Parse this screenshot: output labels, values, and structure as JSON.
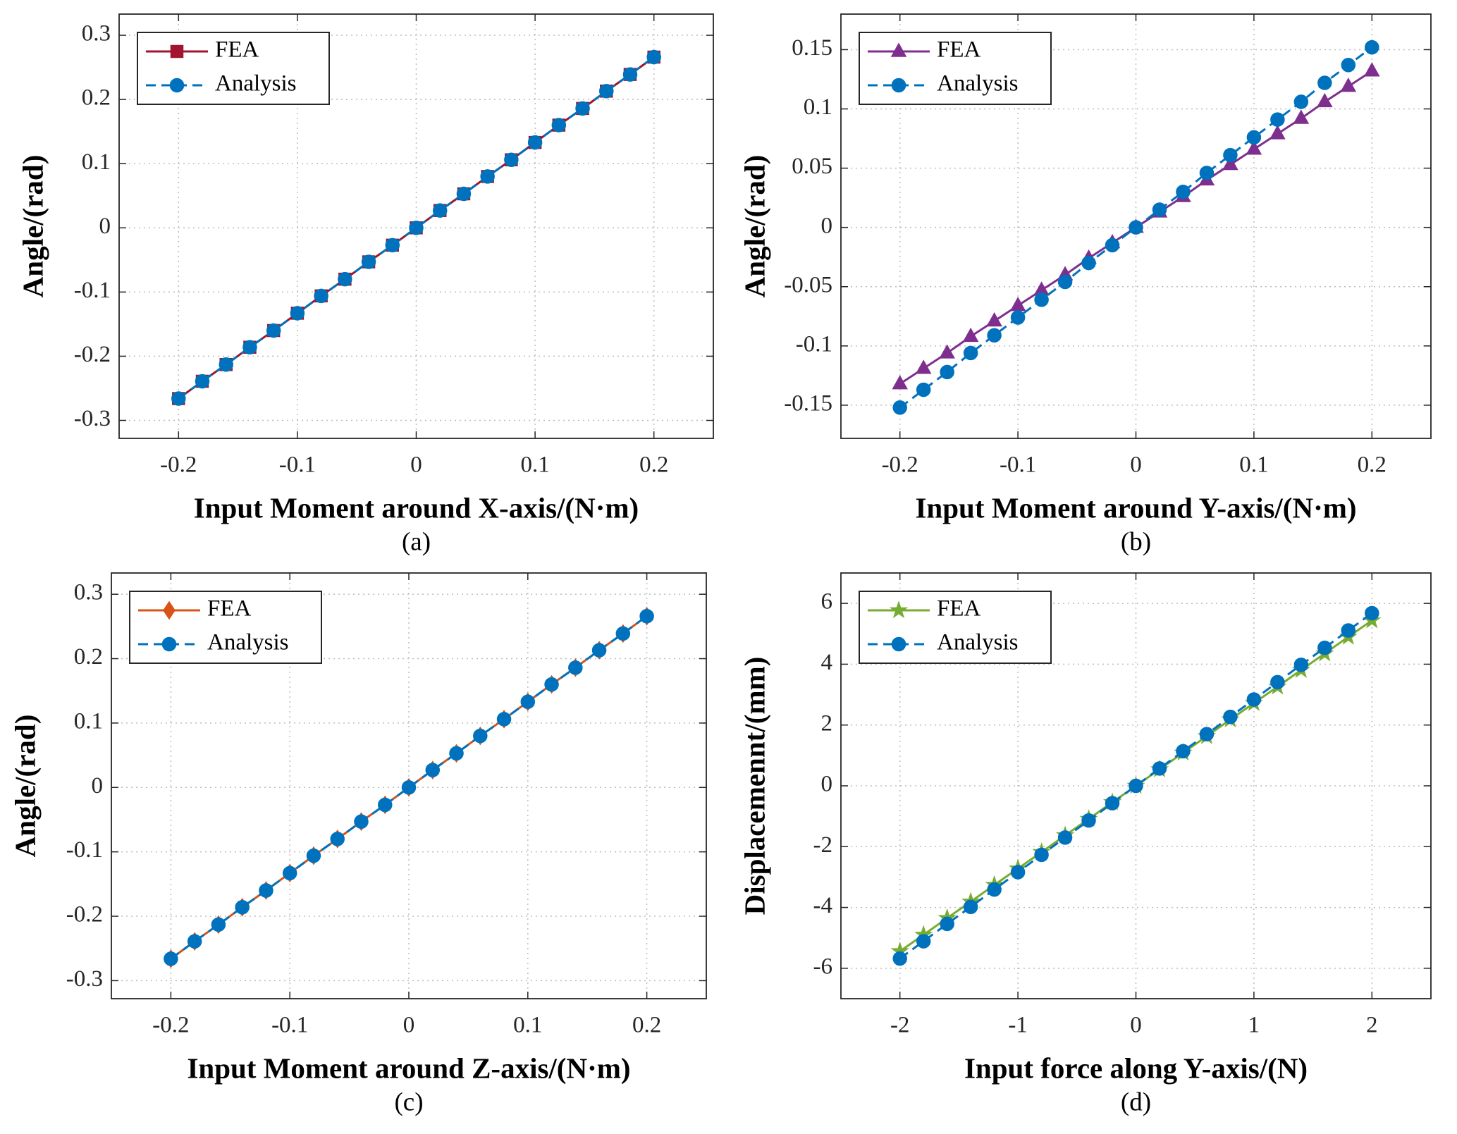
{
  "chart_data": [
    {
      "type": "line",
      "caption": "(a)",
      "x_label": "Input Moment around X-axis/(N·m)",
      "y_label": "Angle/(rad)",
      "x": [
        -0.2,
        -0.18,
        -0.16,
        -0.14,
        -0.12,
        -0.1,
        -0.08,
        -0.06,
        -0.04,
        -0.02,
        0,
        0.02,
        0.04,
        0.06,
        0.08,
        0.1,
        0.12,
        0.14,
        0.16,
        0.18,
        0.2
      ],
      "series": [
        {
          "name": "FEA",
          "color": "#a2142f",
          "marker": "square",
          "dash": false,
          "values": [
            -0.266,
            -0.239,
            -0.213,
            -0.186,
            -0.16,
            -0.133,
            -0.106,
            -0.08,
            -0.053,
            -0.027,
            0,
            0.027,
            0.053,
            0.08,
            0.106,
            0.133,
            0.16,
            0.186,
            0.213,
            0.239,
            0.266
          ]
        },
        {
          "name": "Analysis",
          "color": "#0072bd",
          "marker": "circle",
          "dash": true,
          "values": [
            -0.266,
            -0.239,
            -0.213,
            -0.186,
            -0.16,
            -0.133,
            -0.106,
            -0.08,
            -0.053,
            -0.027,
            0,
            0.027,
            0.053,
            0.08,
            0.106,
            0.133,
            0.16,
            0.186,
            0.213,
            0.239,
            0.266
          ]
        }
      ],
      "xlim": [
        -0.25,
        0.25
      ],
      "xticks": [
        -0.2,
        -0.1,
        0,
        0.1,
        0.2
      ],
      "ylim": [
        -0.328,
        0.333
      ],
      "yticks": [
        -0.3,
        -0.2,
        -0.1,
        0,
        0.1,
        0.2,
        0.3
      ],
      "grid": true,
      "legend": "upper left"
    },
    {
      "type": "line",
      "caption": "(b)",
      "x_label": "Input Moment around Y-axis/(N·m)",
      "y_label": "Angle/(rad)",
      "x": [
        -0.2,
        -0.18,
        -0.16,
        -0.14,
        -0.12,
        -0.1,
        -0.08,
        -0.06,
        -0.04,
        -0.02,
        0,
        0.02,
        0.04,
        0.06,
        0.08,
        0.1,
        0.12,
        0.14,
        0.16,
        0.18,
        0.2
      ],
      "series": [
        {
          "name": "FEA",
          "color": "#7e2f8e",
          "marker": "triangle",
          "dash": false,
          "values": [
            -0.132,
            -0.119,
            -0.106,
            -0.092,
            -0.079,
            -0.066,
            -0.053,
            -0.04,
            -0.026,
            -0.013,
            0,
            0.013,
            0.026,
            0.04,
            0.053,
            0.066,
            0.079,
            0.092,
            0.106,
            0.119,
            0.132
          ]
        },
        {
          "name": "Analysis",
          "color": "#0072bd",
          "marker": "circle",
          "dash": true,
          "values": [
            -0.152,
            -0.137,
            -0.122,
            -0.106,
            -0.091,
            -0.076,
            -0.061,
            -0.046,
            -0.03,
            -0.015,
            0,
            0.015,
            0.03,
            0.046,
            0.061,
            0.076,
            0.091,
            0.106,
            0.122,
            0.137,
            0.152
          ]
        }
      ],
      "xlim": [
        -0.25,
        0.25
      ],
      "xticks": [
        -0.2,
        -0.1,
        0,
        0.1,
        0.2
      ],
      "ylim": [
        -0.178,
        0.18
      ],
      "yticks": [
        -0.15,
        -0.1,
        -0.05,
        0,
        0.05,
        0.1,
        0.15
      ],
      "grid": true,
      "legend": "upper left"
    },
    {
      "type": "line",
      "caption": "(c)",
      "x_label": "Input Moment around Z-axis/(N·m)",
      "y_label": "Angle/(rad)",
      "x": [
        -0.2,
        -0.18,
        -0.16,
        -0.14,
        -0.12,
        -0.1,
        -0.08,
        -0.06,
        -0.04,
        -0.02,
        0,
        0.02,
        0.04,
        0.06,
        0.08,
        0.1,
        0.12,
        0.14,
        0.16,
        0.18,
        0.2
      ],
      "series": [
        {
          "name": "FEA",
          "color": "#d95319",
          "marker": "diamond",
          "dash": false,
          "values": [
            -0.266,
            -0.239,
            -0.213,
            -0.186,
            -0.16,
            -0.133,
            -0.106,
            -0.08,
            -0.053,
            -0.027,
            0,
            0.027,
            0.053,
            0.08,
            0.106,
            0.133,
            0.16,
            0.186,
            0.213,
            0.239,
            0.266
          ]
        },
        {
          "name": "Analysis",
          "color": "#0072bd",
          "marker": "circle",
          "dash": true,
          "values": [
            -0.266,
            -0.239,
            -0.213,
            -0.186,
            -0.16,
            -0.133,
            -0.106,
            -0.08,
            -0.053,
            -0.027,
            0,
            0.027,
            0.053,
            0.08,
            0.106,
            0.133,
            0.16,
            0.186,
            0.213,
            0.239,
            0.266
          ]
        }
      ],
      "xlim": [
        -0.25,
        0.25
      ],
      "xticks": [
        -0.2,
        -0.1,
        0,
        0.1,
        0.2
      ],
      "ylim": [
        -0.328,
        0.333
      ],
      "yticks": [
        -0.3,
        -0.2,
        -0.1,
        0,
        0.1,
        0.2,
        0.3
      ],
      "grid": true,
      "legend": "upper left"
    },
    {
      "type": "line",
      "caption": "(d)",
      "x_label": "Input force along Y-axis/(N)",
      "y_label": "Displacemennt/(mm)",
      "x": [
        -2,
        -1.8,
        -1.6,
        -1.4,
        -1.2,
        -1,
        -0.8,
        -0.6,
        -0.4,
        -0.2,
        0,
        0.2,
        0.4,
        0.6,
        0.8,
        1,
        1.2,
        1.4,
        1.6,
        1.8,
        2
      ],
      "series": [
        {
          "name": "FEA",
          "color": "#77ac30",
          "marker": "star",
          "dash": false,
          "values": [
            -5.44,
            -4.9,
            -4.35,
            -3.81,
            -3.26,
            -2.72,
            -2.18,
            -1.63,
            -1.09,
            -0.54,
            0,
            0.54,
            1.09,
            1.63,
            2.18,
            2.72,
            3.26,
            3.81,
            4.35,
            4.9,
            5.44
          ]
        },
        {
          "name": "Analysis",
          "color": "#0072bd",
          "marker": "circle",
          "dash": true,
          "values": [
            -5.68,
            -5.11,
            -4.54,
            -3.98,
            -3.41,
            -2.84,
            -2.27,
            -1.7,
            -1.14,
            -0.57,
            0,
            0.57,
            1.14,
            1.7,
            2.27,
            2.84,
            3.41,
            3.98,
            4.54,
            5.11,
            5.68
          ]
        }
      ],
      "xlim": [
        -2.5,
        2.5
      ],
      "xticks": [
        -2,
        -1,
        0,
        1,
        2
      ],
      "ylim": [
        -7,
        7
      ],
      "yticks": [
        -6,
        -4,
        -2,
        0,
        2,
        4,
        6
      ],
      "grid": true,
      "legend": "upper left"
    }
  ]
}
